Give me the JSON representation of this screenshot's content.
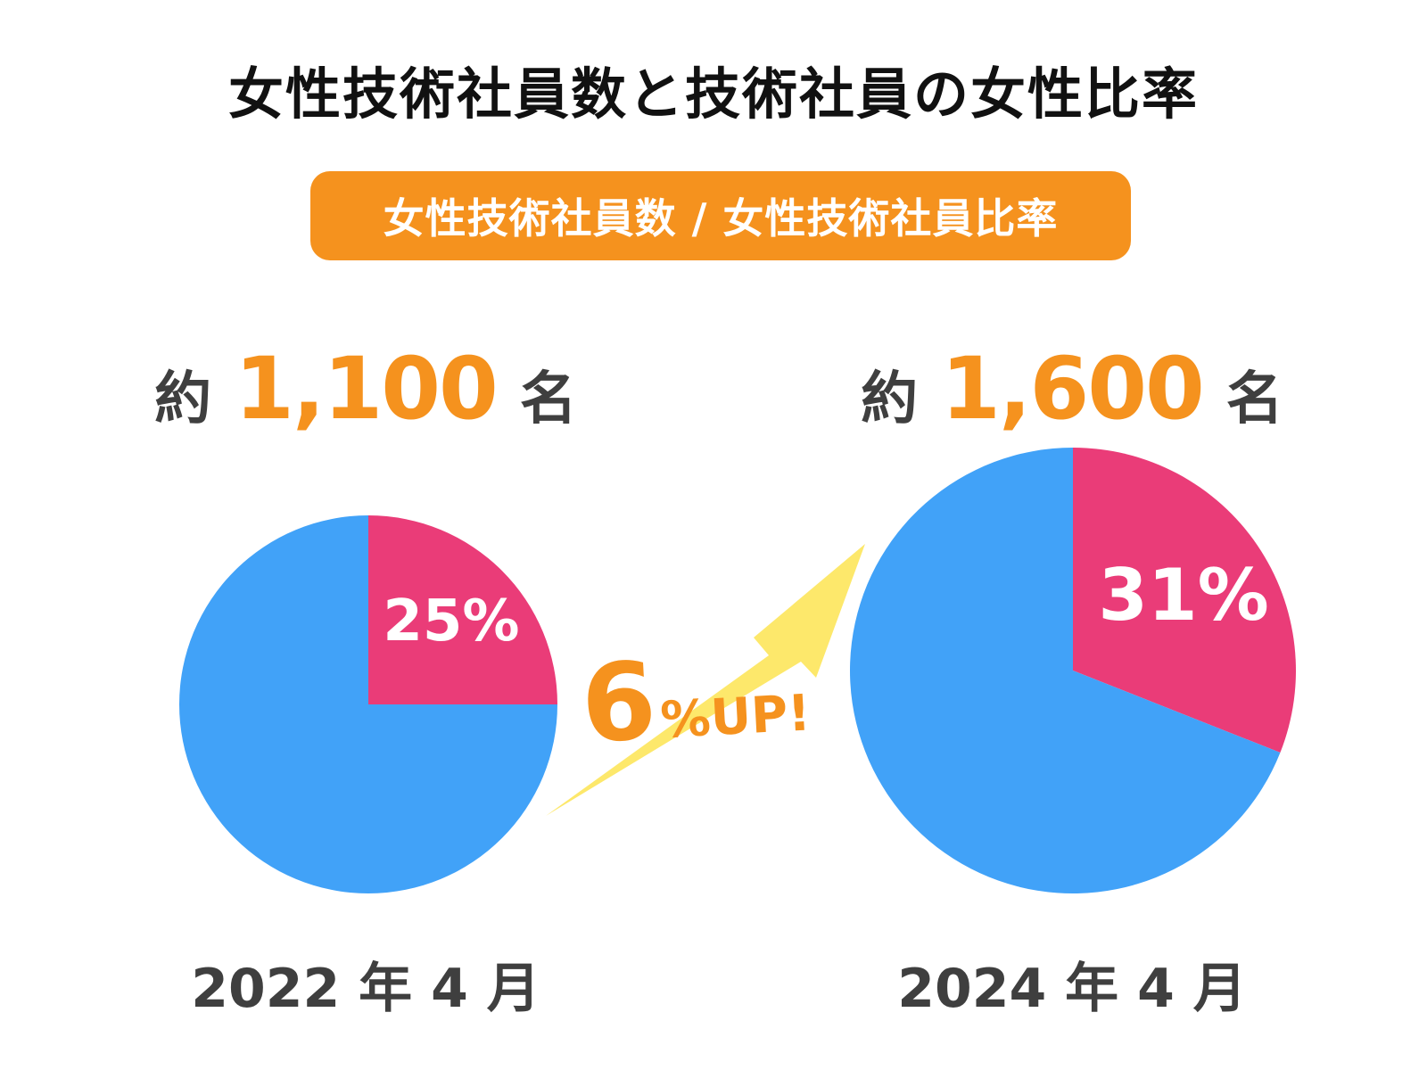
{
  "title": "女性技術社員数と技術社員の女性比率",
  "subtitle": "女性技術社員数 / 女性技術社員比率",
  "colors": {
    "female": "#ea3c78",
    "other": "#41a2f8",
    "accent": "#f5921e",
    "arrow": "#fde86b"
  },
  "increase": {
    "number": "6",
    "suffix": "%UP!"
  },
  "chart_data": {
    "type": "pie",
    "charts": [
      {
        "date": "2022 年 4 月",
        "count_prefix": "約",
        "count": "1,100",
        "count_suffix": "名",
        "slices": [
          {
            "value": 25,
            "label": "25%",
            "color": "#ea3c78"
          },
          {
            "value": 75,
            "label": "",
            "color": "#41a2f8"
          }
        ]
      },
      {
        "date": "2024 年 4 月",
        "count_prefix": "約",
        "count": "1,600",
        "count_suffix": "名",
        "slices": [
          {
            "value": 31,
            "label": "31%",
            "color": "#ea3c78"
          },
          {
            "value": 69,
            "label": "",
            "color": "#41a2f8"
          }
        ]
      }
    ]
  }
}
